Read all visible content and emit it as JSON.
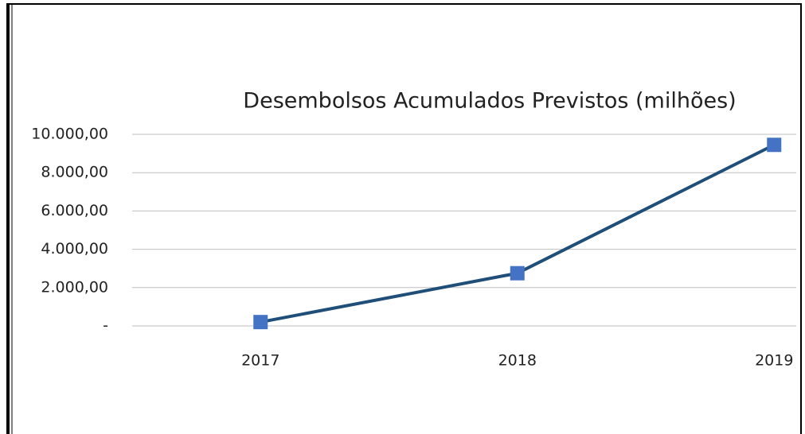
{
  "chart_data": {
    "type": "line",
    "title": "Desembolsos Acumulados Previstos (milhões)",
    "categories": [
      "2017",
      "2018",
      "2019"
    ],
    "series": [
      {
        "name": "Desembolsos Acumulados Previstos (milhões)",
        "color": "#1f4e79",
        "marker_color": "#4472c4",
        "values": [
          200,
          2750,
          9450
        ]
      }
    ],
    "ylim": [
      0,
      10000
    ],
    "yticks": [
      {
        "value": 0,
        "label": "-"
      },
      {
        "value": 2000,
        "label": "2.000,00"
      },
      {
        "value": 4000,
        "label": "4.000,00"
      },
      {
        "value": 6000,
        "label": "6.000,00"
      },
      {
        "value": 8000,
        "label": "8.000,00"
      },
      {
        "value": 10000,
        "label": "10.000,00"
      }
    ],
    "grid": true
  }
}
